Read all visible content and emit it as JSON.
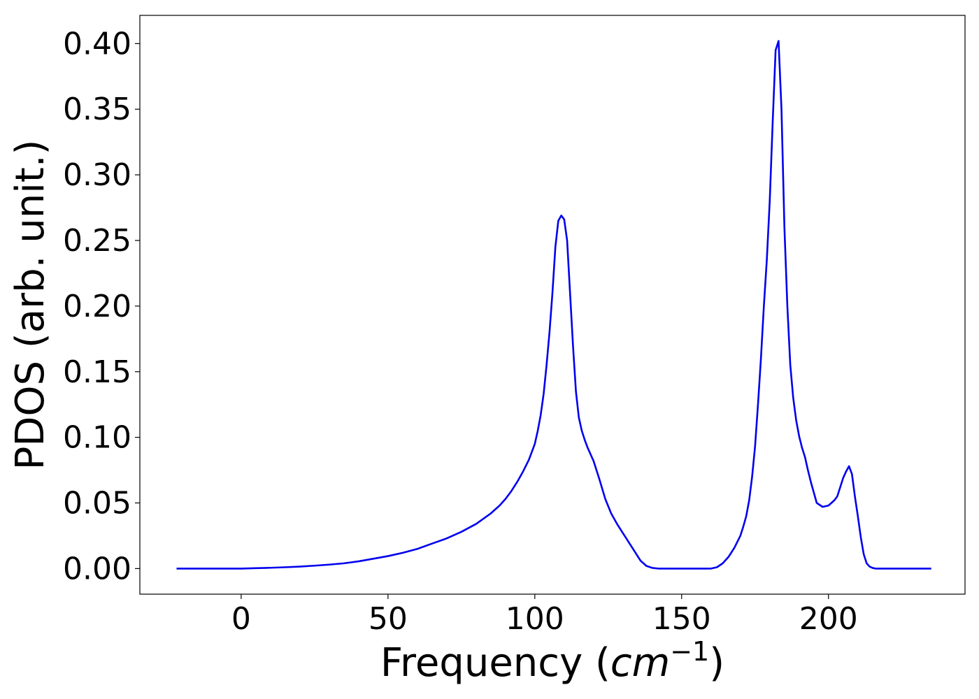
{
  "chart_data": {
    "type": "line",
    "title": "",
    "xlabel": "Frequency (",
    "xlabel_math": "cm",
    "xlabel_exp": "−1",
    "xlabel_close": ")",
    "ylabel": "PDOS (arb. unit.)",
    "xlim": [
      -34.5,
      246.5
    ],
    "ylim": [
      -0.0195,
      0.4215
    ],
    "xticks": [
      0,
      50,
      100,
      150,
      200
    ],
    "xtick_labels": [
      "0",
      "50",
      "100",
      "150",
      "200"
    ],
    "yticks": [
      0.0,
      0.05,
      0.1,
      0.15,
      0.2,
      0.25,
      0.3,
      0.35,
      0.4
    ],
    "ytick_labels": [
      "0.00",
      "0.05",
      "0.10",
      "0.15",
      "0.20",
      "0.25",
      "0.30",
      "0.35",
      "0.40"
    ],
    "grid": false,
    "line_color": "#0000ee",
    "series": [
      {
        "x": [
          -22,
          -10,
          0,
          5,
          10,
          15,
          20,
          25,
          30,
          35,
          40,
          45,
          50,
          55,
          60,
          65,
          70,
          75,
          80,
          85,
          88,
          90,
          92,
          94,
          96,
          98,
          100,
          101,
          102,
          103,
          104,
          105,
          106,
          107,
          108,
          109,
          110,
          111,
          112,
          113,
          114,
          115,
          116,
          117,
          118,
          120,
          122,
          124,
          126,
          128,
          130,
          132,
          134,
          136,
          138,
          140,
          142,
          150,
          160,
          162,
          164,
          166,
          168,
          170,
          171,
          172,
          173,
          174,
          175,
          176,
          177,
          178,
          179,
          180,
          181,
          182,
          183,
          184,
          185,
          186,
          187,
          188,
          189,
          190,
          191,
          192,
          193,
          194,
          195,
          196,
          198,
          200,
          202,
          203,
          204,
          205,
          206,
          207,
          208,
          209,
          210,
          211,
          212,
          213,
          214,
          215,
          216,
          217,
          218,
          219,
          220,
          222,
          230,
          235
        ],
        "y": [
          0.0,
          0.0,
          0.0,
          0.0003,
          0.0006,
          0.001,
          0.0015,
          0.0022,
          0.003,
          0.004,
          0.0055,
          0.0075,
          0.0095,
          0.012,
          0.015,
          0.019,
          0.023,
          0.028,
          0.034,
          0.042,
          0.048,
          0.053,
          0.059,
          0.066,
          0.074,
          0.083,
          0.095,
          0.105,
          0.117,
          0.133,
          0.155,
          0.18,
          0.21,
          0.245,
          0.265,
          0.269,
          0.266,
          0.25,
          0.21,
          0.17,
          0.135,
          0.115,
          0.105,
          0.098,
          0.092,
          0.082,
          0.068,
          0.053,
          0.042,
          0.034,
          0.027,
          0.02,
          0.013,
          0.006,
          0.002,
          0.0005,
          0.0,
          0.0,
          0.0,
          0.001,
          0.004,
          0.009,
          0.016,
          0.025,
          0.032,
          0.04,
          0.052,
          0.07,
          0.093,
          0.125,
          0.16,
          0.2,
          0.235,
          0.28,
          0.34,
          0.395,
          0.402,
          0.35,
          0.26,
          0.2,
          0.155,
          0.13,
          0.113,
          0.101,
          0.092,
          0.085,
          0.075,
          0.066,
          0.058,
          0.05,
          0.047,
          0.048,
          0.052,
          0.055,
          0.062,
          0.069,
          0.074,
          0.078,
          0.072,
          0.055,
          0.04,
          0.024,
          0.011,
          0.004,
          0.0015,
          0.0005,
          0.0,
          0.0,
          0.0,
          0.0,
          0.0,
          0.0,
          0.0,
          0.0
        ]
      }
    ]
  }
}
